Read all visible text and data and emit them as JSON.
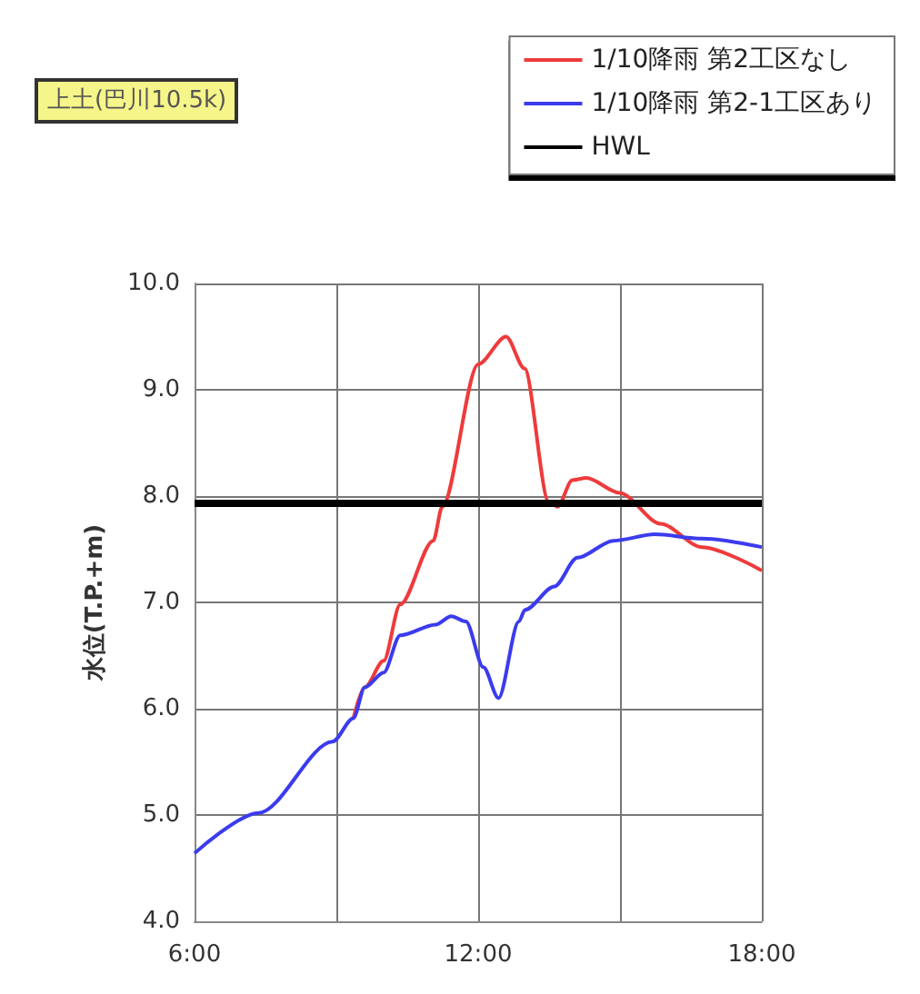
{
  "chart_data": {
    "type": "line",
    "ylabel": "水位(T.P.+m)",
    "annotations": [
      "上土(巴川10.5k)"
    ],
    "xlim": [
      6,
      18
    ],
    "xticks": [
      {
        "value": 6,
        "label": "6:00"
      },
      {
        "value": 9,
        "label": null
      },
      {
        "value": 12,
        "label": "12:00"
      },
      {
        "value": 15,
        "label": null
      },
      {
        "value": 18,
        "label": "18:00"
      }
    ],
    "ylim": [
      4,
      10
    ],
    "yticks": [
      {
        "value": 4,
        "label": "4.0"
      },
      {
        "value": 5,
        "label": "5.0"
      },
      {
        "value": 6,
        "label": "6.0"
      },
      {
        "value": 7,
        "label": "7.0"
      },
      {
        "value": 8,
        "label": "8.0"
      },
      {
        "value": 9,
        "label": "9.0"
      },
      {
        "value": 10,
        "label": "10.0"
      }
    ],
    "series": [
      {
        "name": "1/10降雨 第2工区なし",
        "color": "#ee3b3b",
        "x": [
          9.36,
          9.6,
          10,
          10.35,
          11.05,
          11.24,
          12,
          12.59,
          12.98,
          13.49,
          13.68,
          13.99,
          14.29,
          14.99,
          15.86,
          16.73,
          18
        ],
        "values": [
          5.91,
          6.2,
          6.45,
          6.98,
          7.58,
          7.9,
          9.24,
          9.5,
          9.2,
          7.95,
          7.9,
          8.15,
          8.17,
          8.03,
          7.74,
          7.52,
          7.3
        ]
      },
      {
        "name": "1/10降雨 第2-1工区あり",
        "color": "#3b3bee",
        "x": [
          6,
          7.36,
          8.92,
          9.36,
          9.6,
          10,
          10.35,
          11.1,
          11.43,
          11.74,
          12.11,
          12.43,
          12.86,
          12.99,
          13.61,
          14.1,
          14.86,
          15.74,
          16.73,
          18
        ],
        "values": [
          4.64,
          5.02,
          5.69,
          5.91,
          6.2,
          6.34,
          6.69,
          6.79,
          6.87,
          6.82,
          6.39,
          6.1,
          6.82,
          6.93,
          7.15,
          7.42,
          7.58,
          7.64,
          7.6,
          7.52
        ]
      }
    ],
    "ref_lines": [
      {
        "axis": "y",
        "value": 7.93,
        "label": "HWL",
        "color": "#000000"
      }
    ],
    "grid": true,
    "legend": "top right",
    "line_style": "solid",
    "marker": "none"
  }
}
